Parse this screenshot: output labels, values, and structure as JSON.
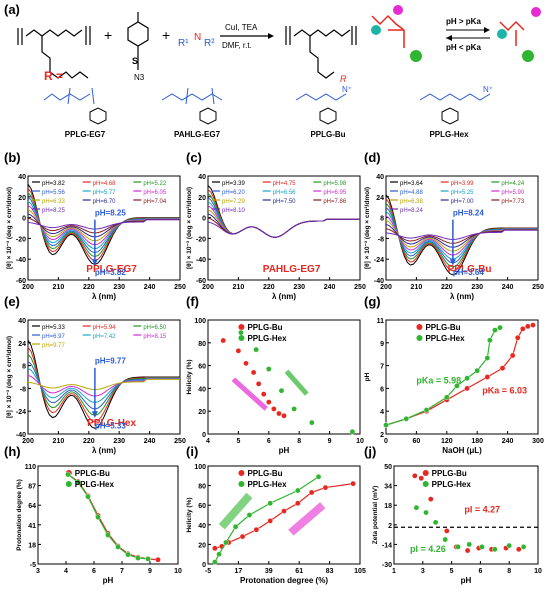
{
  "scheme": {
    "panel_label": "(a)",
    "reagents": "CuI, TEA",
    "conditions": "DMF, r.t.",
    "r_group_label": "R",
    "eq_upper": "pH > pKa",
    "eq_lower": "pH < pKa",
    "polymers": [
      "PPLG-EG7",
      "PAHLG-EG7",
      "PPLG-Bu",
      "PPLG-Hex"
    ]
  },
  "colors": {
    "red": "#e8271f",
    "green": "#2fb52f",
    "blue": "#2b5bd6",
    "magenta": "#e62bd2",
    "teal": "#1fb5a6"
  },
  "chart_data": [
    {
      "panel": "(b)",
      "type": "line",
      "title": "PPLG-EG7",
      "xlabel": "λ (nm)",
      "ylabel": "[θ] × 10⁻³ (deg × cm²/dmol)",
      "xlim": [
        200,
        250
      ],
      "ylim": [
        -60,
        40
      ],
      "legend": [
        "pH=3.82",
        "pH=4.68",
        "pH=5.22",
        "pH=5.56",
        "pH=5.77",
        "pH=6.05",
        "pH=6.33",
        "pH=6.70",
        "pH=7.04",
        "pH=8.25"
      ],
      "annotations": [
        "pH=8.25",
        "pH=3.82"
      ]
    },
    {
      "panel": "(c)",
      "type": "line",
      "title": "PAHLG-EG7",
      "xlabel": "λ (nm)",
      "ylabel": "[θ] × 10⁻³ (deg × cm²/dmol)",
      "xlim": [
        200,
        250
      ],
      "ylim": [
        -60,
        40
      ],
      "legend": [
        "pH=3.39",
        "pH=4.75",
        "pH=5.98",
        "pH=6.20",
        "pH=6.56",
        "pH=6.95",
        "pH=7.29",
        "pH=7.50",
        "pH=7.86",
        "pH=8.10"
      ]
    },
    {
      "panel": "(d)",
      "type": "line",
      "title": "PPLG-Bu",
      "xlabel": "λ (nm)",
      "ylabel": "[θ] × 10⁻³ (deg × cm²/dmol)",
      "xlim": [
        200,
        250
      ],
      "ylim": [
        -40,
        40
      ],
      "legend": [
        "pH=3.64",
        "pH=3.99",
        "pH=4.24",
        "pH=4.88",
        "pH=5.25",
        "pH=5.90",
        "pH=6.38",
        "pH=7.00",
        "pH=7.73",
        "pH=8.24"
      ],
      "annotations": [
        "pH=8.24",
        "pH=3.64"
      ]
    },
    {
      "panel": "(e)",
      "type": "line",
      "title": "PPLG-Hex",
      "xlabel": "λ (nm)",
      "ylabel": "[θ] × 10⁻³ (deg × cm²/dmol)",
      "xlim": [
        200,
        250
      ],
      "ylim": [
        -40,
        40
      ],
      "legend": [
        "pH=5.33",
        "pH=5.94",
        "pH=6.50",
        "pH=6.97",
        "pH=7.42",
        "pH=8.15",
        "pH=9.77"
      ],
      "annotations": [
        "pH=9.77",
        "pH=5.33"
      ]
    },
    {
      "panel": "(f)",
      "type": "scatter",
      "xlabel": "pH",
      "ylabel": "Helicity (%)",
      "xlim": [
        4,
        10
      ],
      "ylim": [
        0,
        100
      ],
      "series": [
        {
          "name": "PPLG-Bu",
          "x": [
            4.6,
            5.2,
            5.5,
            5.8,
            6.0,
            6.2,
            6.4,
            6.6,
            6.8,
            7.0
          ],
          "y": [
            82,
            73,
            62,
            54,
            44,
            35,
            28,
            22,
            18,
            16
          ]
        },
        {
          "name": "PPLG-Hex",
          "x": [
            5.3,
            5.9,
            6.4,
            6.9,
            7.4,
            8.1,
            9.7
          ],
          "y": [
            89,
            74,
            57,
            38,
            22,
            10,
            2
          ]
        }
      ]
    },
    {
      "panel": "(g)",
      "type": "line",
      "xlabel": "NaOH (μL)",
      "ylabel": "pH",
      "xlim": [
        0,
        300
      ],
      "ylim": [
        2,
        11
      ],
      "annotations": [
        "pKa = 5.98",
        "pKa = 6.03"
      ],
      "series": [
        {
          "name": "PPLG-Bu",
          "x": [
            0,
            40,
            80,
            120,
            160,
            200,
            230,
            250,
            260,
            270,
            280,
            290
          ],
          "y": [
            2.7,
            3.2,
            3.8,
            4.7,
            5.6,
            6.5,
            7.2,
            8.2,
            9.6,
            10.3,
            10.5,
            10.6
          ]
        },
        {
          "name": "PPLG-Hex",
          "x": [
            0,
            40,
            80,
            120,
            140,
            160,
            180,
            200,
            205,
            215,
            225
          ],
          "y": [
            2.7,
            3.2,
            3.9,
            4.9,
            5.8,
            6.4,
            7.0,
            8.0,
            9.4,
            10.2,
            10.4
          ]
        }
      ]
    },
    {
      "panel": "(h)",
      "type": "line",
      "xlabel": "pH",
      "ylabel": "Protonation degree (%)",
      "xlim": [
        3,
        10
      ],
      "ylim": [
        -5,
        110
      ],
      "series": [
        {
          "name": "PPLG-Bu",
          "x": [
            4.5,
            5.0,
            5.5,
            6.0,
            6.5,
            7.0,
            7.5,
            8.0,
            8.5,
            9.0
          ],
          "y": [
            100,
            92,
            75,
            52,
            31,
            16,
            7,
            3,
            1,
            0
          ]
        },
        {
          "name": "PPLG-Hex",
          "x": [
            4.5,
            5.0,
            5.5,
            6.0,
            6.5,
            7.0,
            7.5,
            8.0,
            8.5
          ],
          "y": [
            100,
            91,
            74,
            50,
            29,
            15,
            6,
            2,
            1
          ]
        }
      ]
    },
    {
      "panel": "(i)",
      "type": "line",
      "xlabel": "Protonation degree (%)",
      "ylabel": "Helicity (%)",
      "xlim": [
        -5,
        105
      ],
      "ylim": [
        0,
        100
      ],
      "series": [
        {
          "name": "PPLG-Bu",
          "x": [
            0,
            5,
            10,
            20,
            30,
            40,
            50,
            60,
            70,
            80,
            100
          ],
          "y": [
            16,
            18,
            22,
            28,
            35,
            44,
            54,
            62,
            73,
            78,
            82
          ]
        },
        {
          "name": "PPLG-Hex",
          "x": [
            0,
            3,
            8,
            15,
            25,
            40,
            60,
            75
          ],
          "y": [
            2,
            10,
            22,
            38,
            50,
            62,
            75,
            89
          ]
        }
      ]
    },
    {
      "panel": "(j)",
      "type": "scatter",
      "xlabel": "pH",
      "ylabel": "Zeta potential (mV)",
      "xlim": [
        1,
        10
      ],
      "ylim": [
        -30,
        50
      ],
      "annotations": [
        "pI = 4.27",
        "pI = 4.26"
      ],
      "series": [
        {
          "name": "PPLG-Bu",
          "x": [
            2.3,
            2.7,
            3.3,
            4.3,
            4.9,
            5.6,
            6.3,
            7.1,
            8.0,
            8.8
          ],
          "y": [
            42,
            40,
            23,
            -3,
            -16,
            -19,
            -17,
            -18,
            -17,
            -18
          ]
        },
        {
          "name": "PPLG-Hex",
          "x": [
            2.4,
            3.0,
            3.6,
            4.2,
            5.0,
            5.7,
            6.5,
            7.3,
            8.2,
            9.1
          ],
          "y": [
            16,
            12,
            4,
            -10,
            -16,
            -14,
            -16,
            -18,
            -15,
            -16
          ]
        }
      ]
    }
  ]
}
